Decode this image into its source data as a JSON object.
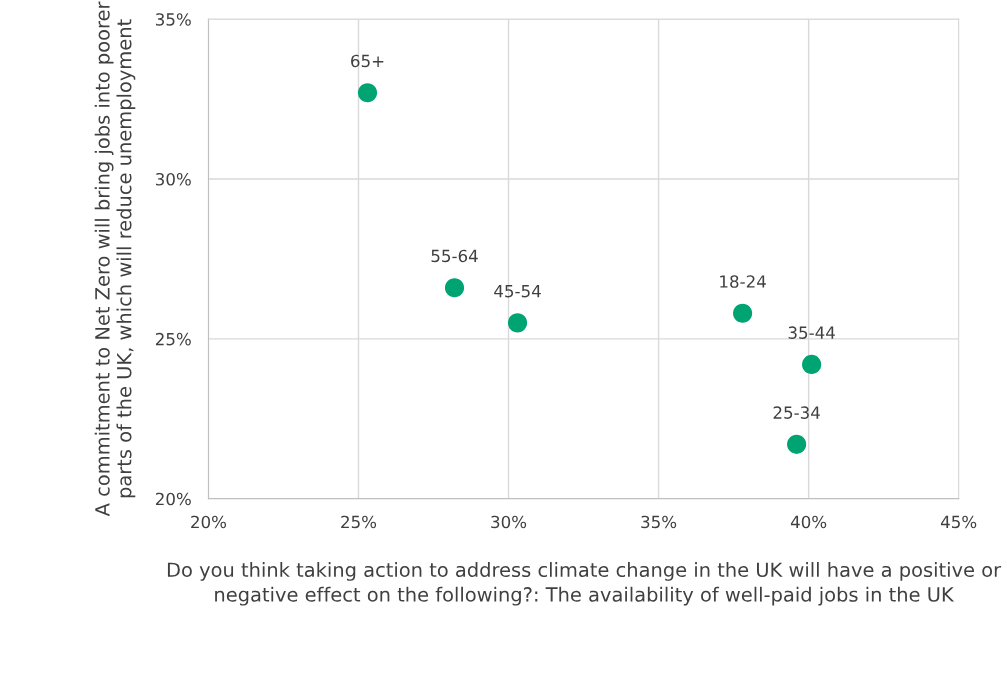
{
  "chart_data": {
    "type": "scatter",
    "xlabel": "Do you think taking action to address climate change in the UK will have a positive or negative effect on the following?: The availability of well-paid jobs in the UK",
    "ylabel": "A commitment to Net Zero will bring jobs into poorer parts of the UK, which will reduce unemployment",
    "x": [
      25.3,
      28.2,
      30.3,
      37.8,
      40.1,
      39.6
    ],
    "series": [
      {
        "color": "#00a372",
        "values": [
          32.7,
          26.6,
          25.5,
          25.8,
          24.2,
          21.7
        ]
      }
    ],
    "annotations": [
      {
        "text": "65+",
        "x": 25.3,
        "y": 32.7
      },
      {
        "text": "55-64",
        "x": 28.2,
        "y": 26.6
      },
      {
        "text": "45-54",
        "x": 30.3,
        "y": 25.5
      },
      {
        "text": "18-24",
        "x": 37.8,
        "y": 25.8
      },
      {
        "text": "35-44",
        "x": 40.1,
        "y": 24.2
      },
      {
        "text": "25-34",
        "x": 39.6,
        "y": 21.7
      }
    ],
    "xlim": [
      20,
      45
    ],
    "xticks": [
      {
        "value": 20,
        "label": "20%"
      },
      {
        "value": 25,
        "label": "25%"
      },
      {
        "value": 30,
        "label": "30%"
      },
      {
        "value": 35,
        "label": "35%"
      },
      {
        "value": 40,
        "label": "40%"
      },
      {
        "value": 45,
        "label": "45%"
      }
    ],
    "ylim": [
      20,
      35
    ],
    "yticks": [
      {
        "value": 20,
        "label": "20%"
      },
      {
        "value": 25,
        "label": "25%"
      },
      {
        "value": 30,
        "label": "30%"
      },
      {
        "value": 35,
        "label": "35%"
      }
    ],
    "grid": true,
    "marker": "circle"
  }
}
